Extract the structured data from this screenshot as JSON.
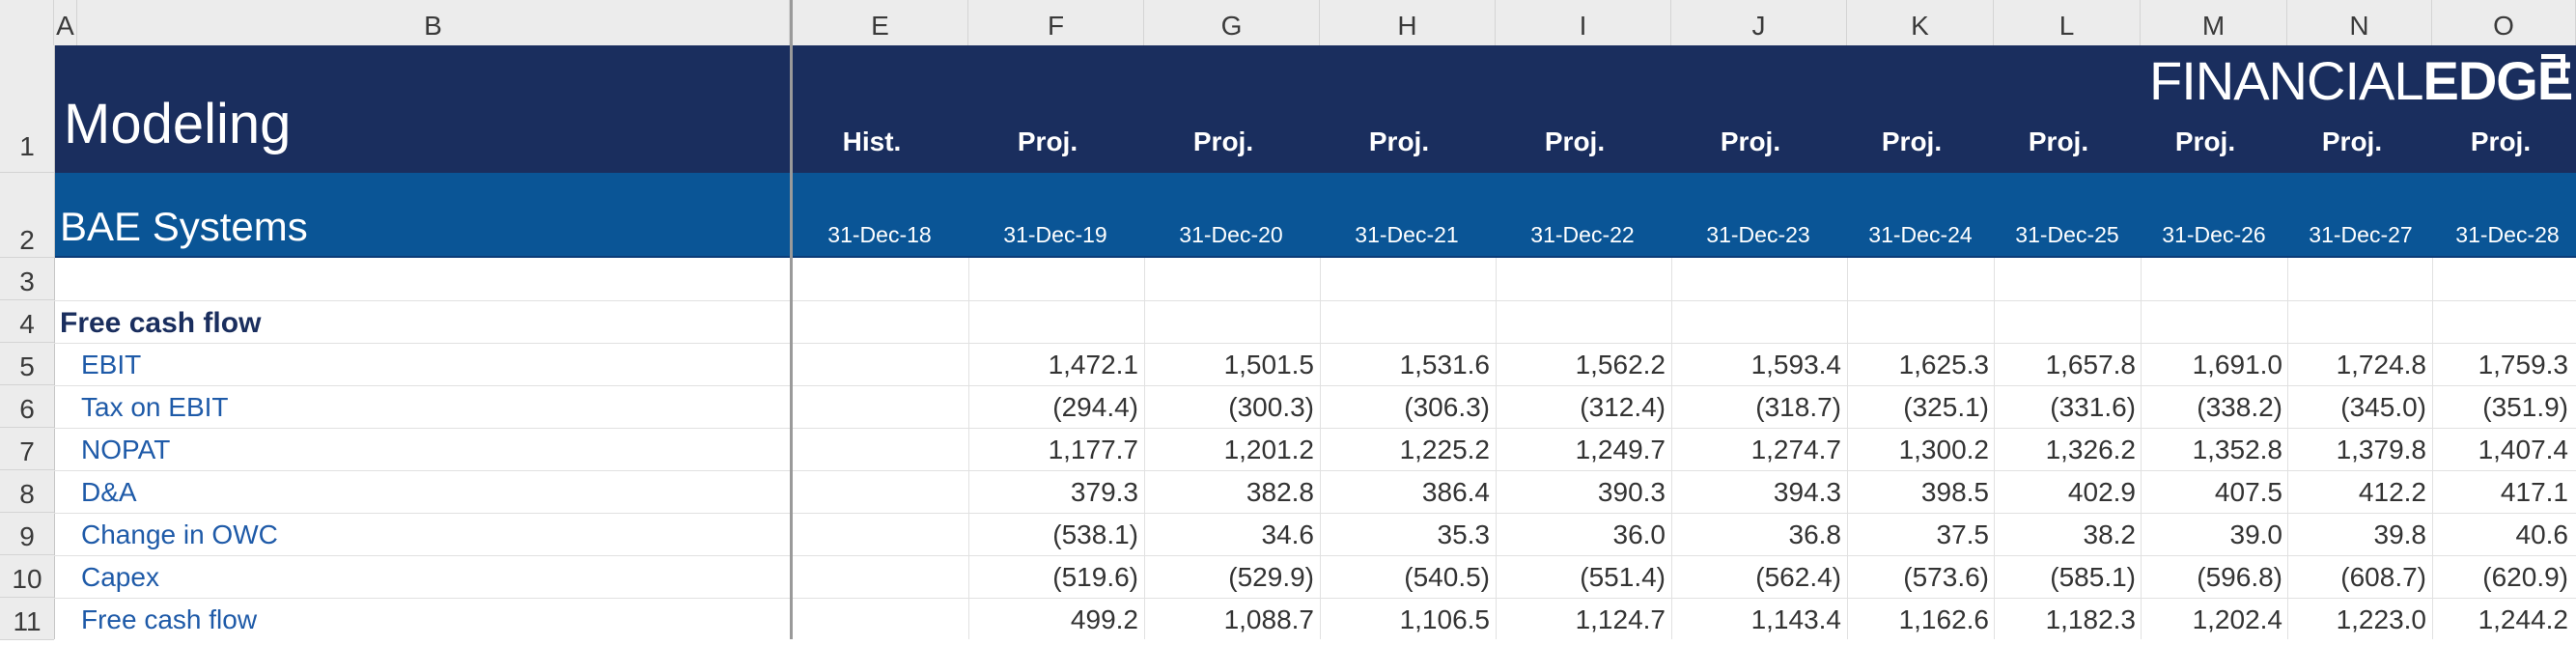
{
  "columns": [
    "A",
    "B",
    "E",
    "F",
    "G",
    "H",
    "I",
    "J",
    "K",
    "L",
    "M",
    "N",
    "O"
  ],
  "rows": [
    "1",
    "2",
    "3",
    "4",
    "5",
    "6",
    "7",
    "8",
    "9",
    "10",
    "11"
  ],
  "header": {
    "title": "Modeling",
    "subtitle": "BAE Systems",
    "logo_text_thin": "FINANCIAL",
    "logo_text_bold": "EDGE",
    "periods": [
      {
        "type": "Hist.",
        "date": "31-Dec-18"
      },
      {
        "type": "Proj.",
        "date": "31-Dec-19"
      },
      {
        "type": "Proj.",
        "date": "31-Dec-20"
      },
      {
        "type": "Proj.",
        "date": "31-Dec-21"
      },
      {
        "type": "Proj.",
        "date": "31-Dec-22"
      },
      {
        "type": "Proj.",
        "date": "31-Dec-23"
      },
      {
        "type": "Proj.",
        "date": "31-Dec-24"
      },
      {
        "type": "Proj.",
        "date": "31-Dec-25"
      },
      {
        "type": "Proj.",
        "date": "31-Dec-26"
      },
      {
        "type": "Proj.",
        "date": "31-Dec-27"
      },
      {
        "type": "Proj.",
        "date": "31-Dec-28"
      }
    ]
  },
  "section_title": "Free cash flow",
  "lines": [
    {
      "label": "EBIT",
      "values": [
        "",
        "1,472.1",
        "1,501.5",
        "1,531.6",
        "1,562.2",
        "1,593.4",
        "1,625.3",
        "1,657.8",
        "1,691.0",
        "1,724.8",
        "1,759.3"
      ]
    },
    {
      "label": "Tax on EBIT",
      "values": [
        "",
        "(294.4)",
        "(300.3)",
        "(306.3)",
        "(312.4)",
        "(318.7)",
        "(325.1)",
        "(331.6)",
        "(338.2)",
        "(345.0)",
        "(351.9)"
      ]
    },
    {
      "label": "NOPAT",
      "values": [
        "",
        "1,177.7",
        "1,201.2",
        "1,225.2",
        "1,249.7",
        "1,274.7",
        "1,300.2",
        "1,326.2",
        "1,352.8",
        "1,379.8",
        "1,407.4"
      ]
    },
    {
      "label": "D&A",
      "values": [
        "",
        "379.3",
        "382.8",
        "386.4",
        "390.3",
        "394.3",
        "398.5",
        "402.9",
        "407.5",
        "412.2",
        "417.1"
      ]
    },
    {
      "label": "Change in OWC",
      "values": [
        "",
        "(538.1)",
        "34.6",
        "35.3",
        "36.0",
        "36.8",
        "37.5",
        "38.2",
        "39.0",
        "39.8",
        "40.6"
      ]
    },
    {
      "label": "Capex",
      "values": [
        "",
        "(519.6)",
        "(529.9)",
        "(540.5)",
        "(551.4)",
        "(562.4)",
        "(573.6)",
        "(585.1)",
        "(596.8)",
        "(608.7)",
        "(620.9)"
      ]
    },
    {
      "label": "Free cash flow",
      "values": [
        "",
        "499.2",
        "1,088.7",
        "1,106.5",
        "1,124.7",
        "1,143.4",
        "1,162.6",
        "1,182.3",
        "1,202.4",
        "1,223.0",
        "1,244.2"
      ]
    }
  ],
  "colors": {
    "band_dark": "#1a2e5e",
    "band_blue": "#0a5596",
    "label_blue": "#1e5aa8"
  }
}
